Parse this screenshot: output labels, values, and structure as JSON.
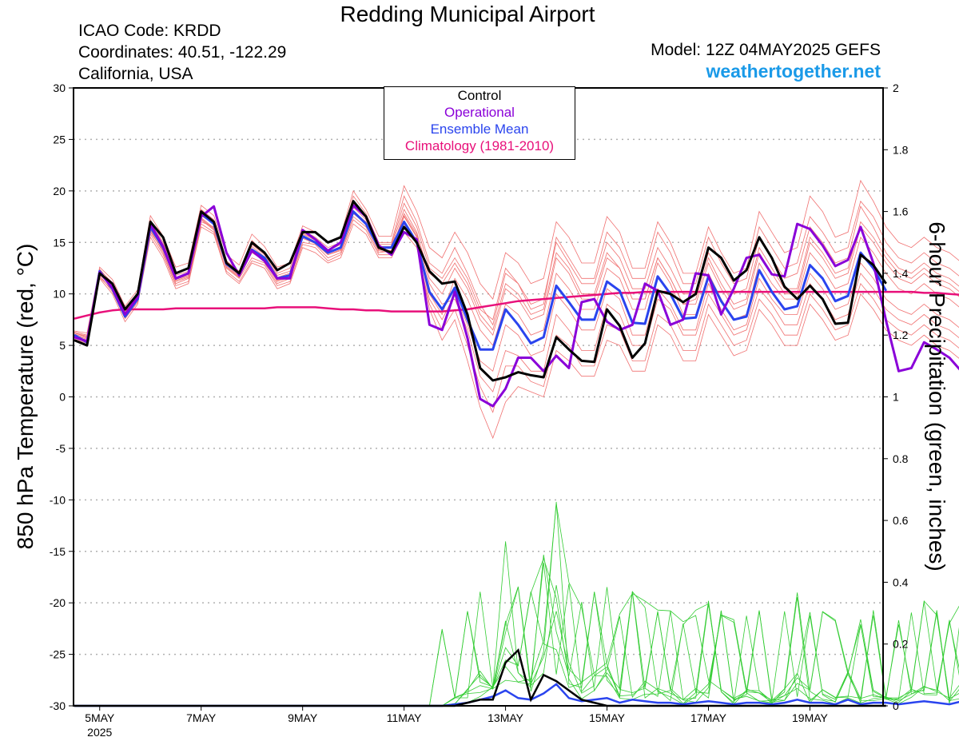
{
  "header": {
    "title": "Redding Municipal Airport",
    "icao": "ICAO Code: KRDD",
    "coordinates": "Coordinates: 40.51, -122.29",
    "region": "California, USA",
    "model": "Model: 12Z 04MAY2025 GEFS",
    "site": "weathertogether.net"
  },
  "colors": {
    "members": "#f07070",
    "control": "#000000",
    "operational": "#8a00d8",
    "mean": "#2a44ee",
    "climatology": "#e8107a",
    "precip": "#33cc33",
    "site": "#1a9ae8"
  },
  "chart_data": {
    "type": "line",
    "ylabel": "850 hPa Temperature (red, °C)",
    "ylabel_right": "6-hour Precipitation (green, inches)",
    "ylim": [
      -30,
      30
    ],
    "ylim_right": [
      0,
      2
    ],
    "yticks": [
      "30",
      "25",
      "20",
      "15",
      "10",
      "5",
      "0",
      "-5",
      "-10",
      "-15",
      "-20",
      "-25",
      "-30"
    ],
    "yticks_right": [
      "2",
      "1.8",
      "1.6",
      "1.4",
      "1.2",
      "1",
      "0.8",
      "0.6",
      "0.4",
      "0.2",
      "0"
    ],
    "xticks": [
      "5MAY",
      "7MAY",
      "9MAY",
      "11MAY",
      "13MAY",
      "15MAY",
      "17MAY",
      "19MAY"
    ],
    "x_year": "2025",
    "grid": true,
    "legend_position": "top-center",
    "legend": [
      "Control",
      "Operational",
      "Ensemble Mean",
      "Climatology (1981-2010)"
    ],
    "time_axis": {
      "start": "04MAY2025 12Z",
      "step_hours": 6
    },
    "series": [
      {
        "name": "Control",
        "values": [
          5.5,
          5.0,
          12.0,
          11.0,
          8.5,
          10.0,
          17.0,
          15.5,
          12.0,
          12.5,
          18.0,
          17.0,
          13.0,
          12.0,
          15.0,
          14.0,
          12.3,
          13.0,
          16.0,
          16.0,
          15.0,
          15.5,
          19.0,
          17.5,
          14.5,
          14.0,
          16.5,
          15.0,
          12.2,
          11.0,
          11.2,
          8.0,
          2.8,
          1.6,
          1.9,
          2.4,
          2.1,
          1.9,
          5.8,
          4.6,
          3.5,
          3.4,
          8.5,
          6.9,
          3.8,
          5.2,
          10.3,
          10.0,
          9.2,
          10.0,
          14.5,
          13.5,
          11.3,
          12.3,
          15.5,
          13.5,
          10.7,
          9.5,
          10.8,
          9.5,
          7.1,
          7.2,
          13.8,
          12.8,
          11.0
        ]
      },
      {
        "name": "Operational",
        "values": [
          5.8,
          5.4,
          12.1,
          10.6,
          8.0,
          9.7,
          16.8,
          14.6,
          11.5,
          12.0,
          17.5,
          18.5,
          14.0,
          11.8,
          14.2,
          13.2,
          11.5,
          11.5,
          16.2,
          15.3,
          14.2,
          15.0,
          18.6,
          17.5,
          14.7,
          13.8,
          16.0,
          15.3,
          7.0,
          6.5,
          10.2,
          5.7,
          -0.2,
          -0.9,
          0.8,
          3.8,
          3.8,
          2.5,
          4.0,
          2.8,
          9.2,
          9.5,
          7.3,
          6.5,
          7.0,
          11.0,
          10.3,
          7.0,
          7.5,
          12.0,
          11.8,
          8.0,
          10.5,
          13.5,
          13.8,
          11.9,
          11.7,
          16.8,
          16.3,
          14.7,
          12.7,
          13.3,
          16.5,
          13.0,
          7.4,
          2.5,
          2.8,
          5.3,
          4.6,
          3.8,
          2.4,
          1.6
        ]
      },
      {
        "name": "Ensemble Mean",
        "values": [
          6.0,
          5.3,
          12.2,
          10.5,
          7.8,
          9.5,
          16.5,
          14.5,
          11.5,
          12.0,
          17.8,
          16.8,
          12.9,
          12.0,
          14.3,
          13.5,
          11.5,
          11.8,
          15.6,
          15.0,
          14.0,
          14.5,
          18.0,
          16.8,
          14.5,
          14.5,
          17.0,
          15.0,
          10.2,
          8.5,
          10.6,
          7.5,
          4.6,
          4.6,
          8.5,
          7.0,
          5.2,
          5.8,
          10.8,
          9.2,
          7.5,
          7.5,
          11.2,
          10.3,
          7.2,
          7.1,
          11.7,
          10.0,
          7.6,
          7.7,
          11.7,
          9.3,
          7.5,
          7.8,
          12.3,
          10.2,
          8.5,
          8.8,
          12.8,
          11.5,
          9.3,
          9.8,
          14.0,
          12.5,
          10.3
        ]
      },
      {
        "name": "Climatology (1981-2010)",
        "values": [
          7.6,
          7.9,
          8.2,
          8.4,
          8.5,
          8.5,
          8.5,
          8.5,
          8.6,
          8.6,
          8.6,
          8.6,
          8.6,
          8.6,
          8.6,
          8.6,
          8.7,
          8.7,
          8.7,
          8.7,
          8.6,
          8.5,
          8.5,
          8.4,
          8.4,
          8.3,
          8.3,
          8.3,
          8.3,
          8.3,
          8.4,
          8.5,
          8.7,
          8.9,
          9.1,
          9.3,
          9.4,
          9.5,
          9.6,
          9.7,
          9.8,
          9.9,
          10.0,
          10.1,
          10.1,
          10.2,
          10.2,
          10.2,
          10.2,
          10.2,
          10.2,
          10.2,
          10.2,
          10.2,
          10.2,
          10.2,
          10.2,
          10.2,
          10.2,
          10.2,
          10.2,
          10.2,
          10.2,
          10.2,
          10.2,
          10.2,
          10.2,
          10.1,
          10.1,
          10.0,
          9.9,
          9.8
        ]
      }
    ],
    "members": [
      [
        6.2,
        5.8,
        12.0,
        10.8,
        8.2,
        9.8,
        16.2,
        14.0,
        11.0,
        11.5,
        17.0,
        16.5,
        12.5,
        11.5,
        13.5,
        13.0,
        11.0,
        11.5,
        15.0,
        14.8,
        13.5,
        14.0,
        17.5,
        16.5,
        14.0,
        14.2,
        17.5,
        15.5,
        10.0,
        8.0,
        11.5,
        9.5,
        6.5,
        5.0,
        9.0,
        8.0,
        6.0,
        6.5,
        12.0,
        10.5,
        8.5,
        8.5,
        12.5,
        11.5,
        8.5,
        8.5,
        13.0,
        11.0,
        8.0,
        8.0,
        12.0,
        9.5,
        7.5,
        8.0,
        13.0,
        11.0,
        9.5,
        9.5,
        14.0,
        12.5,
        10.5,
        11.0,
        15.5,
        14.0,
        12.0,
        10.5,
        10.0,
        11.0,
        10.0,
        9.5,
        8.5,
        8.0
      ],
      [
        5.9,
        5.5,
        11.8,
        10.2,
        7.6,
        9.2,
        15.8,
        13.8,
        10.8,
        11.2,
        16.8,
        16.0,
        12.2,
        11.2,
        13.2,
        12.8,
        10.8,
        11.2,
        14.8,
        14.5,
        13.2,
        13.8,
        17.2,
        16.2,
        13.8,
        13.8,
        16.8,
        15.0,
        9.5,
        7.5,
        10.0,
        7.0,
        3.5,
        2.5,
        7.0,
        6.0,
        4.0,
        4.5,
        10.0,
        8.5,
        6.5,
        6.5,
        10.5,
        9.5,
        6.0,
        6.0,
        10.5,
        9.0,
        6.5,
        6.5,
        11.0,
        8.5,
        6.5,
        7.0,
        11.5,
        9.5,
        8.0,
        8.0,
        12.0,
        10.5,
        8.5,
        9.0,
        13.0,
        11.5,
        9.5,
        8.5,
        8.0,
        9.0,
        8.0,
        7.5,
        6.5,
        6.0
      ],
      [
        6.3,
        6.0,
        12.4,
        11.0,
        8.4,
        10.0,
        17.2,
        15.0,
        12.0,
        12.5,
        18.2,
        17.2,
        13.2,
        12.2,
        15.2,
        14.0,
        12.0,
        12.5,
        16.2,
        15.5,
        14.5,
        15.0,
        19.5,
        17.8,
        15.0,
        15.0,
        19.5,
        17.0,
        13.0,
        12.0,
        14.5,
        12.0,
        9.0,
        7.0,
        12.0,
        11.0,
        9.0,
        9.5,
        15.0,
        13.0,
        11.0,
        11.0,
        15.0,
        13.5,
        10.5,
        10.5,
        14.5,
        12.5,
        10.0,
        10.0,
        14.0,
        12.0,
        10.0,
        10.5,
        15.5,
        13.5,
        11.5,
        12.0,
        16.5,
        15.0,
        13.0,
        13.5,
        18.5,
        16.5,
        14.0,
        12.5,
        12.0,
        13.0,
        12.0,
        11.5,
        10.5,
        10.0
      ],
      [
        5.6,
        5.2,
        11.5,
        10.0,
        7.3,
        9.0,
        15.5,
        13.5,
        10.5,
        11.0,
        16.5,
        15.8,
        12.0,
        11.0,
        13.0,
        12.5,
        10.5,
        11.0,
        14.5,
        14.0,
        13.0,
        13.5,
        16.8,
        15.8,
        13.5,
        13.5,
        16.0,
        14.5,
        9.0,
        6.5,
        8.5,
        5.0,
        1.0,
        -1.5,
        3.0,
        3.0,
        1.5,
        1.0,
        6.0,
        5.0,
        3.0,
        3.0,
        7.0,
        6.5,
        3.5,
        3.5,
        8.0,
        7.0,
        4.5,
        4.5,
        9.0,
        7.0,
        5.0,
        5.5,
        9.5,
        8.0,
        6.0,
        6.0,
        10.0,
        8.5,
        6.5,
        7.0,
        11.0,
        9.5,
        7.5,
        6.5,
        6.0,
        7.0,
        6.0,
        5.5,
        4.5,
        4.0
      ],
      [
        6.1,
        5.7,
        12.2,
        10.9,
        8.3,
        9.9,
        16.6,
        14.6,
        11.6,
        12.0,
        17.6,
        16.8,
        13.0,
        11.8,
        14.6,
        13.6,
        11.6,
        12.0,
        15.8,
        15.2,
        14.0,
        14.6,
        18.4,
        17.2,
        14.6,
        14.6,
        18.2,
        16.0,
        11.5,
        10.0,
        12.5,
        10.5,
        7.5,
        6.0,
        10.5,
        9.5,
        7.5,
        8.0,
        13.5,
        12.0,
        9.5,
        9.5,
        13.5,
        12.5,
        9.5,
        9.5,
        13.5,
        11.5,
        9.0,
        9.0,
        13.0,
        10.5,
        8.5,
        9.0,
        14.0,
        12.0,
        10.0,
        10.0,
        15.0,
        13.5,
        11.5,
        12.0,
        16.5,
        15.0,
        13.0,
        11.5,
        11.0,
        12.0,
        11.0,
        10.5,
        9.5,
        9.0
      ],
      [
        5.7,
        5.3,
        11.6,
        10.4,
        7.9,
        9.5,
        16.0,
        14.2,
        11.2,
        11.6,
        17.2,
        16.2,
        12.6,
        11.6,
        14.0,
        13.2,
        11.2,
        11.6,
        15.4,
        14.9,
        13.8,
        14.2,
        17.8,
        16.8,
        14.2,
        14.0,
        17.0,
        14.8,
        8.5,
        5.5,
        7.5,
        3.5,
        -1.0,
        -4.0,
        -0.5,
        1.0,
        0.5,
        0.0,
        4.5,
        3.5,
        2.0,
        2.0,
        5.5,
        5.0,
        2.5,
        2.5,
        7.0,
        6.0,
        3.5,
        3.5,
        8.0,
        6.0,
        4.0,
        4.5,
        8.5,
        7.0,
        5.0,
        5.0,
        9.0,
        7.5,
        5.5,
        6.0,
        10.0,
        8.5,
        6.5,
        5.5,
        5.0,
        6.0,
        5.0,
        4.5,
        3.5,
        3.0
      ],
      [
        6.4,
        6.2,
        12.6,
        11.4,
        8.8,
        10.4,
        17.6,
        15.6,
        12.6,
        13.0,
        18.6,
        17.6,
        13.8,
        12.8,
        15.8,
        14.6,
        12.6,
        13.0,
        16.6,
        16.0,
        15.0,
        15.6,
        20.0,
        18.2,
        15.6,
        15.6,
        20.5,
        18.0,
        14.5,
        13.5,
        16.0,
        14.0,
        11.0,
        9.5,
        14.0,
        13.0,
        11.0,
        11.5,
        17.0,
        15.5,
        13.0,
        13.0,
        17.5,
        16.0,
        12.5,
        12.5,
        17.0,
        15.0,
        12.0,
        12.0,
        16.5,
        14.0,
        12.0,
        12.5,
        18.0,
        16.0,
        14.0,
        14.5,
        19.5,
        18.0,
        15.5,
        16.0,
        21.0,
        19.0,
        16.5,
        15.0,
        14.5,
        15.5,
        14.5,
        14.0,
        13.0,
        12.5
      ],
      [
        5.8,
        5.4,
        11.9,
        10.6,
        8.1,
        9.6,
        16.4,
        14.4,
        11.4,
        11.8,
        17.4,
        16.4,
        12.8,
        11.8,
        14.4,
        13.4,
        11.4,
        11.8,
        15.6,
        15.0,
        13.9,
        14.4,
        18.0,
        17.0,
        14.4,
        14.2,
        17.8,
        15.8,
        12.0,
        11.0,
        13.0,
        11.0,
        8.0,
        6.5,
        11.0,
        10.0,
        8.0,
        8.5,
        14.0,
        12.5,
        10.0,
        10.0,
        14.0,
        12.5,
        9.5,
        9.5,
        13.5,
        11.5,
        9.0,
        9.5,
        13.5,
        11.0,
        9.0,
        9.5,
        14.5,
        12.5,
        10.5,
        10.5,
        15.5,
        14.0,
        12.0,
        12.5,
        17.0,
        15.5,
        13.5,
        12.0,
        11.5,
        12.5,
        11.5,
        11.0,
        10.0,
        9.5
      ],
      [
        6.0,
        5.6,
        12.1,
        10.7,
        8.0,
        9.7,
        16.3,
        14.3,
        11.3,
        11.7,
        17.3,
        16.3,
        12.7,
        11.7,
        14.3,
        13.3,
        11.3,
        11.7,
        15.5,
        14.9,
        13.8,
        14.3,
        17.9,
        16.9,
        14.3,
        14.1,
        17.6,
        15.6,
        11.0,
        9.0,
        9.5,
        6.5,
        2.0,
        0.5,
        4.5,
        4.0,
        2.5,
        2.5,
        8.0,
        6.5,
        4.5,
        4.5,
        9.0,
        8.0,
        5.0,
        5.0,
        9.5,
        8.5,
        6.0,
        6.0,
        10.0,
        8.0,
        6.0,
        6.5,
        10.5,
        9.0,
        7.0,
        7.0,
        11.0,
        9.5,
        7.5,
        8.0,
        12.0,
        10.5,
        8.5,
        7.5,
        7.0,
        8.0,
        7.0,
        6.5,
        5.5,
        5.0
      ],
      [
        6.2,
        5.9,
        12.3,
        11.1,
        8.5,
        10.1,
        17.0,
        14.8,
        11.8,
        12.2,
        17.8,
        16.9,
        13.1,
        12.1,
        14.8,
        13.8,
        11.8,
        12.2,
        15.9,
        15.3,
        14.2,
        14.8,
        18.8,
        17.4,
        14.8,
        14.8,
        18.8,
        16.5,
        12.5,
        11.5,
        13.5,
        11.5,
        8.5,
        7.5,
        12.5,
        11.0,
        8.5,
        9.0,
        15.5,
        13.5,
        11.5,
        11.5,
        16.0,
        14.5,
        11.5,
        11.5,
        16.0,
        14.0,
        11.0,
        11.0,
        15.5,
        13.0,
        11.0,
        11.5,
        16.5,
        14.5,
        12.5,
        13.0,
        17.5,
        16.0,
        14.0,
        14.5,
        19.0,
        17.5,
        15.0,
        13.5,
        13.0,
        14.0,
        13.0,
        12.5,
        11.5,
        11.0
      ]
    ],
    "precip_control": [
      0,
      0,
      0,
      0,
      0,
      0,
      0,
      0,
      0,
      0,
      0,
      0,
      0,
      0,
      0,
      0,
      0,
      0,
      0,
      0,
      0,
      0,
      0,
      0,
      0,
      0,
      0,
      0,
      0,
      0,
      0,
      0.01,
      0.02,
      0.02,
      0.14,
      0.18,
      0.02,
      0.1,
      0.08,
      0.05,
      0.02,
      0.01,
      0,
      0,
      0,
      0,
      0,
      0,
      0,
      0,
      0,
      0,
      0,
      0,
      0,
      0,
      0,
      0,
      0,
      0,
      0,
      0,
      0,
      0,
      0
    ],
    "precip_mean": [
      0,
      0,
      0,
      0,
      0,
      0,
      0,
      0,
      0,
      0,
      0,
      0,
      0,
      0,
      0,
      0,
      0,
      0,
      0,
      0,
      0,
      0,
      0,
      0,
      0,
      0,
      0,
      0,
      0,
      0,
      0.005,
      0.01,
      0.02,
      0.03,
      0.05,
      0.025,
      0.02,
      0.04,
      0.07,
      0.025,
      0.015,
      0.02,
      0.025,
      0.01,
      0.02,
      0.015,
      0.01,
      0.01,
      0.005,
      0.01,
      0.015,
      0.01,
      0.005,
      0.01,
      0.01,
      0.005,
      0.01,
      0.02,
      0.01,
      0.01,
      0.005,
      0.02,
      0.005,
      0.01,
      0.01,
      0.005,
      0.01,
      0.015,
      0.01,
      0.005,
      0.015,
      0.005
    ]
  }
}
